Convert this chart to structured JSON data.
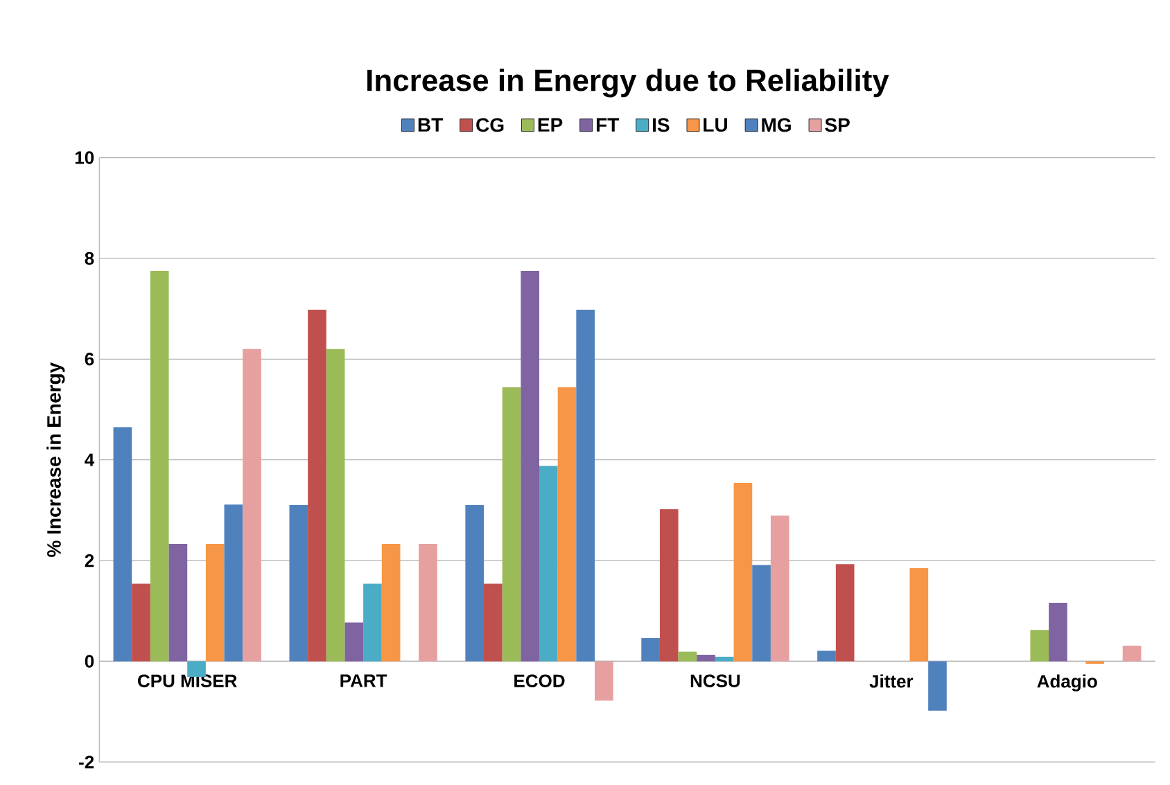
{
  "chart_data": {
    "type": "bar",
    "title": "Increase in Energy due to Reliability",
    "ylabel": "% Increase in Energy",
    "categories": [
      "CPU MISER",
      "PART",
      "ECOD",
      "NCSU",
      "Jitter",
      "Adagio"
    ],
    "series": [
      {
        "name": "BT",
        "color": "#4f81bd",
        "values": [
          4.65,
          3.1,
          3.1,
          0.46,
          0.21,
          0
        ]
      },
      {
        "name": "CG",
        "color": "#c0504d",
        "values": [
          1.54,
          6.98,
          1.54,
          3.02,
          1.93,
          0
        ]
      },
      {
        "name": "EP",
        "color": "#9bbb59",
        "values": [
          7.75,
          6.2,
          5.44,
          0.19,
          0,
          0.62
        ]
      },
      {
        "name": "FT",
        "color": "#8064a2",
        "values": [
          2.33,
          0.77,
          7.75,
          0.13,
          0,
          1.16
        ]
      },
      {
        "name": "IS",
        "color": "#4bacc6",
        "values": [
          -0.31,
          1.54,
          3.88,
          0.09,
          0,
          0
        ]
      },
      {
        "name": "LU",
        "color": "#f79646",
        "values": [
          2.33,
          2.33,
          5.44,
          3.54,
          1.85,
          -0.05
        ]
      },
      {
        "name": "MG",
        "color": "#4f81bd",
        "values": [
          3.11,
          0,
          6.98,
          1.91,
          -0.98,
          0
        ]
      },
      {
        "name": "SP",
        "color": "#e6a0a0",
        "values": [
          6.2,
          2.33,
          -0.78,
          2.89,
          0,
          0.31
        ]
      }
    ],
    "ylim": [
      -2,
      10
    ],
    "yticks": [
      -2,
      0,
      2,
      4,
      6,
      8,
      10
    ],
    "grid": "y",
    "legend": "top"
  }
}
